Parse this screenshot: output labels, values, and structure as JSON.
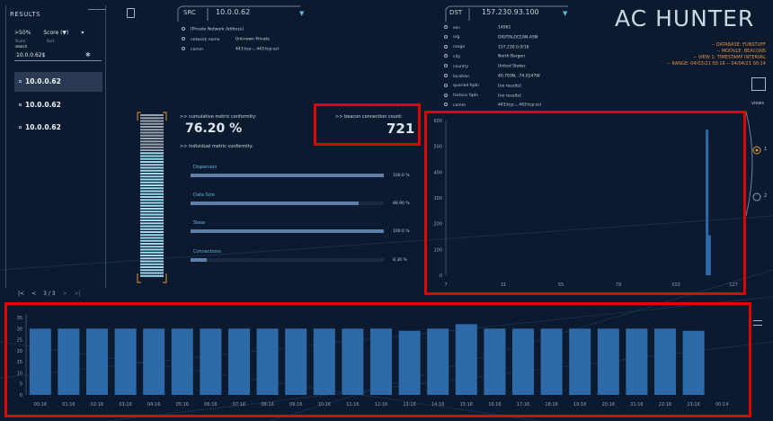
{
  "results": {
    "title": "RESULTS",
    "filter": ">50%",
    "sort": "Score (▼)",
    "score_label": "Score",
    "sort_label": "Sort",
    "search_label": "search",
    "search_value": "10.0.0.62$",
    "items": [
      "10.0.0.62",
      "10.0.0.62",
      "10.0.0.62"
    ],
    "page": "3 / 3"
  },
  "src": {
    "label": "SRC",
    "ip": "10.0.0.62",
    "rows": [
      {
        "k": "",
        "v": "[Private Network Address]"
      },
      {
        "k": "network name",
        "v": "Unknown Private"
      },
      {
        "k": "comm",
        "v": "443:tcp:-, 443:tcp:ssl"
      }
    ]
  },
  "dst": {
    "label": "DST",
    "ip": "157.230.93.100",
    "rows": [
      {
        "k": "asn",
        "v": "14061"
      },
      {
        "k": "org",
        "v": "DIGITALOCEAN-ASN"
      },
      {
        "k": "range",
        "v": "157.230.0.0/16"
      },
      {
        "k": "city",
        "v": "North Bergen"
      },
      {
        "k": "country",
        "v": "United States"
      },
      {
        "k": "location",
        "v": "40.793N, -74.0247W"
      },
      {
        "k": "queried fqdn",
        "v": "[no results]"
      },
      {
        "k": "historic fqdn",
        "v": "[no results]"
      },
      {
        "k": "comm",
        "v": "443:tcp:-, 443:tcp:ssl"
      }
    ]
  },
  "logo": {
    "text": "AC HUNTER",
    "meta": [
      "-- DATABASE: FUNSTUFF",
      "-- MODULE: BEACONS",
      "-- VIEW 1: TIMESTAMP INTERVAL",
      "-- RANGE: 04/03/21 00:16 -- 04/04/21 00:14"
    ]
  },
  "metrics": {
    "cumulative_label": ">> cumulative metric conformity:",
    "cumulative_value": "76.20 %",
    "cumulative_fraction": 0.762,
    "individual_label": ">> individual metric conformity:",
    "beacon_label": ">> beacon connection count:",
    "beacon_count": "721",
    "bars": [
      {
        "name": "Dispersion",
        "pct": "100.0 %",
        "fraction": 1.0
      },
      {
        "name": "Data Size",
        "pct": "86.90 %",
        "fraction": 0.869
      },
      {
        "name": "Skew",
        "pct": "100.0 %",
        "fraction": 1.0
      },
      {
        "name": "Connections",
        "pct": "8.36 %",
        "fraction": 0.0836
      }
    ]
  },
  "views": {
    "label": "views",
    "options": [
      "1",
      "2"
    ]
  },
  "chart_data": [
    {
      "type": "bar",
      "x_ticks": [
        "7",
        "31",
        "55",
        "79",
        "103",
        "127"
      ],
      "ylim": [
        0,
        600
      ],
      "y_ticks": [
        "0",
        "100",
        "200",
        "300",
        "400",
        "500",
        "600"
      ],
      "xlim": [
        7,
        127
      ],
      "points": [
        {
          "x": 116,
          "y": 565
        },
        {
          "x": 117,
          "y": 155
        }
      ]
    },
    {
      "type": "bar",
      "categories": [
        "00:16",
        "01:16",
        "02:16",
        "03:16",
        "04:16",
        "05:16",
        "06:16",
        "07:16",
        "08:16",
        "09:16",
        "10:16",
        "11:16",
        "12:16",
        "13:16",
        "14:16",
        "15:16",
        "16:16",
        "17:16",
        "18:16",
        "19:16",
        "20:16",
        "21:16",
        "22:16",
        "23:16",
        "00:14"
      ],
      "values": [
        30,
        30,
        30,
        30,
        30,
        30,
        30,
        30,
        30,
        30,
        30,
        30,
        30,
        29,
        30,
        32,
        30,
        30,
        30,
        30,
        30,
        30,
        30,
        29,
        0
      ],
      "ylim": [
        0,
        35
      ],
      "y_ticks": [
        "0",
        "5",
        "10",
        "15",
        "20",
        "25",
        "30",
        "35"
      ]
    }
  ],
  "colors": {
    "accent": "#e8913a",
    "bar": "#2f6aa8",
    "highlight": "#e00000"
  }
}
